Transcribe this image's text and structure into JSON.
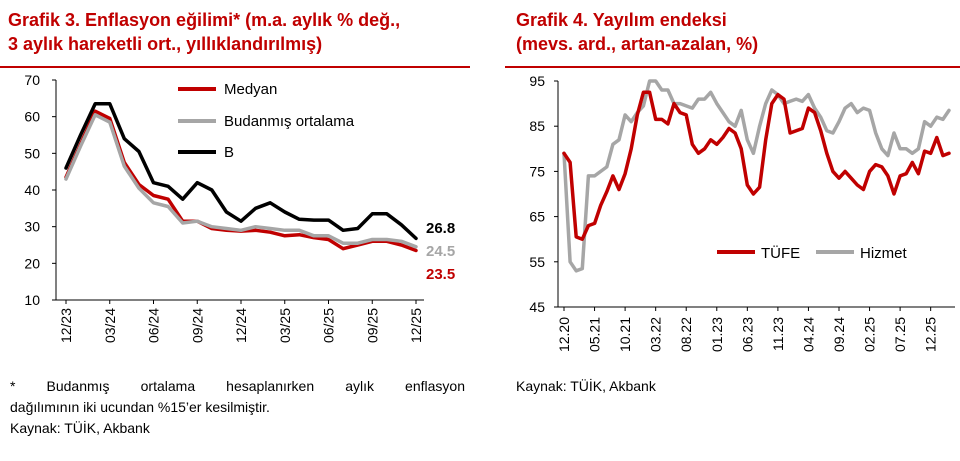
{
  "chart1": {
    "title_line1": "Grafik 3. Enflasyon eğilimi* (m.a. aylık % değ.,",
    "title_line2": "3 aylık hareketli ort., yıllıklandırılmış)",
    "footnote_line1": "* Budanmış ortalama hesaplanırken aylık enflasyon",
    "footnote_line2": "dağılımının iki ucundan %15’er kesilmiştir.",
    "source": "Kaynak: TÜİK, Akbank"
  },
  "chart2": {
    "title_line1": "Grafik 4. Yayılım endeksi",
    "title_line2": "(mevs. ard., artan-azalan, %)",
    "source": "Kaynak: TÜİK, Akbank"
  },
  "chart_data": [
    {
      "type": "line",
      "title": "Grafik 3. Enflasyon eğilimi* (m.a. aylık % değ., 3 aylık hareketli ort., yıllıklandırılmış)",
      "ylim": [
        10,
        70
      ],
      "yticks": [
        "10",
        "20",
        "30",
        "40",
        "50",
        "60",
        "70"
      ],
      "x_tick_labels": [
        "12/23",
        "03/24",
        "06/24",
        "09/24",
        "12/24",
        "03/25",
        "06/25",
        "09/25",
        "12/25"
      ],
      "x": [
        "12/23",
        "01/24",
        "02/24",
        "03/24",
        "04/24",
        "05/24",
        "06/24",
        "07/24",
        "08/24",
        "09/24",
        "10/24",
        "11/24",
        "12/24",
        "01/25",
        "02/25",
        "03/25",
        "04/25",
        "05/25",
        "06/25",
        "07/25",
        "08/25",
        "09/25",
        "10/25",
        "11/25",
        "12/25"
      ],
      "grid": false,
      "legend": "top-center",
      "end_labels": [
        "26.8",
        "24.5",
        "23.5"
      ],
      "series": [
        {
          "name": "Medyan",
          "color": "#c00000",
          "end_label": "23.5",
          "values": [
            43.5,
            52.5,
            61.5,
            59.5,
            47.5,
            41.5,
            38.5,
            37.5,
            31.5,
            31.5,
            29.5,
            29.0,
            28.8,
            29.0,
            28.5,
            27.5,
            27.8,
            27.0,
            26.5,
            24.0,
            25.0,
            26.0,
            26.0,
            25.0,
            23.5
          ]
        },
        {
          "name": "Budanmış ortalama",
          "color": "#a6a6a6",
          "end_label": "24.5",
          "values": [
            43.0,
            52.0,
            60.5,
            58.5,
            46.5,
            40.5,
            36.5,
            35.5,
            31.0,
            31.5,
            30.0,
            29.5,
            29.0,
            30.0,
            29.5,
            29.0,
            29.0,
            27.5,
            27.5,
            25.5,
            25.5,
            26.5,
            26.5,
            26.0,
            24.5
          ]
        },
        {
          "name": "B",
          "color": "#000000",
          "end_label": "26.8",
          "values": [
            46.0,
            55.0,
            63.5,
            63.5,
            54.0,
            50.5,
            42.0,
            41.0,
            37.5,
            42.0,
            40.0,
            34.0,
            31.5,
            35.0,
            36.5,
            34.0,
            32.0,
            31.8,
            31.8,
            29.0,
            29.5,
            33.5,
            33.5,
            30.5,
            26.8
          ]
        }
      ]
    },
    {
      "type": "line",
      "title": "Grafik 4. Yayılım endeksi (mevs. ard., artan-azalan, %)",
      "ylim": [
        45,
        95
      ],
      "yticks": [
        "45",
        "55",
        "65",
        "75",
        "85",
        "95"
      ],
      "x_tick_labels": [
        "12.20",
        "05.21",
        "10.21",
        "03.22",
        "08.22",
        "01.23",
        "06.23",
        "11.23",
        "04.24",
        "09.24",
        "02.25",
        "07.25",
        "12.25"
      ],
      "grid": false,
      "legend": "bottom-center",
      "series": [
        {
          "name": "TÜFE",
          "color": "#c00000",
          "values": [
            79,
            77,
            60.5,
            60,
            63,
            63.5,
            67.5,
            70.5,
            74,
            71,
            74.5,
            80,
            87.5,
            92.5,
            92.5,
            86.5,
            86.5,
            85.5,
            90,
            88,
            87.5,
            81,
            79,
            80,
            82,
            81,
            82.5,
            84.5,
            83.5,
            80,
            72,
            70,
            71.5,
            82,
            90,
            92,
            91,
            83.5,
            84,
            84.5,
            89,
            88,
            84,
            79,
            75,
            73.5,
            75,
            73.5,
            72,
            71,
            75,
            76.5,
            76,
            74,
            70,
            74,
            74.5,
            77,
            74.5,
            79.5,
            79,
            82.5,
            78.5,
            79
          ]
        },
        {
          "name": "Hizmet",
          "color": "#a6a6a6",
          "values": [
            79,
            55,
            53,
            53.5,
            74,
            74,
            75,
            76,
            81,
            82,
            87.5,
            86,
            88,
            89.5,
            95,
            95,
            93,
            93,
            90,
            90,
            89.5,
            89,
            91,
            91,
            92.5,
            90,
            88,
            86,
            85,
            88.5,
            82,
            79,
            85,
            90,
            93,
            92,
            90,
            90.5,
            91,
            90.5,
            92,
            89,
            87,
            84,
            83.5,
            86,
            89,
            90,
            88,
            89,
            88.5,
            83.5,
            80,
            78.5,
            83.5,
            80,
            80,
            79,
            80,
            86,
            85,
            87,
            86.5,
            88.5
          ]
        }
      ]
    }
  ]
}
